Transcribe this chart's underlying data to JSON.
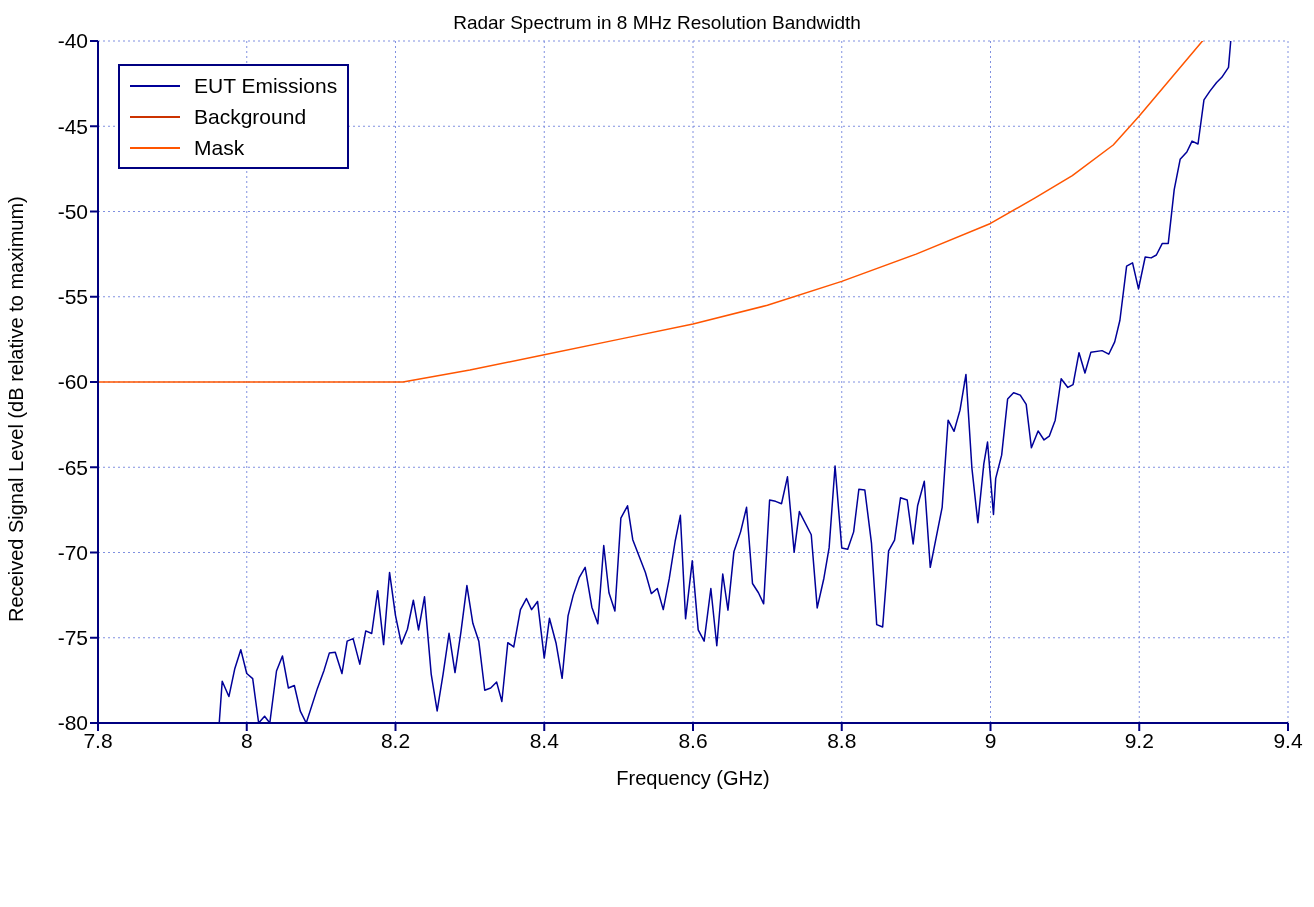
{
  "chart_data": {
    "type": "line",
    "title": "Radar Spectrum in 8 MHz Resolution Bandwidth",
    "xlabel": "Frequency (GHz)",
    "ylabel": "Received Signal Level (dB relative to maximum)",
    "xlim": [
      7.8,
      9.4
    ],
    "xticks": [
      7.8,
      8,
      8.2,
      8.4,
      8.6,
      8.8,
      9,
      9.2,
      9.4
    ],
    "ylim": [
      -80,
      -40
    ],
    "yticks": [
      -80,
      -75,
      -70,
      -65,
      -60,
      -55,
      -50,
      -45,
      -40
    ],
    "grid": true,
    "legend": "top left",
    "line_style": "solid",
    "marker": "none",
    "series": [
      {
        "name": "EUT Emissions",
        "color": "#000099",
        "x": [
          7.963,
          7.967,
          7.976,
          7.984,
          7.992,
          8.0,
          8.008,
          8.016,
          8.024,
          8.031,
          8.04,
          8.048,
          8.056,
          8.064,
          8.072,
          8.08,
          8.095,
          8.104,
          8.111,
          8.119,
          8.128,
          8.135,
          8.143,
          8.152,
          8.16,
          8.168,
          8.176,
          8.184,
          8.192,
          8.2,
          8.208,
          8.216,
          8.224,
          8.231,
          8.239,
          8.248,
          8.256,
          8.264,
          8.272,
          8.28,
          8.288,
          8.296,
          8.304,
          8.312,
          8.32,
          8.328,
          8.336,
          8.343,
          8.351,
          8.359,
          8.368,
          8.376,
          8.383,
          8.391,
          8.4,
          8.407,
          8.416,
          8.424,
          8.432,
          8.439,
          8.447,
          8.455,
          8.464,
          8.472,
          8.48,
          8.487,
          8.495,
          8.503,
          8.512,
          8.519,
          8.536,
          8.544,
          8.552,
          8.56,
          8.568,
          8.576,
          8.583,
          8.59,
          8.599,
          8.607,
          8.615,
          8.624,
          8.632,
          8.64,
          8.647,
          8.655,
          8.664,
          8.672,
          8.68,
          8.688,
          8.695,
          8.703,
          8.711,
          8.719,
          8.727,
          8.736,
          8.743,
          8.759,
          8.767,
          8.776,
          8.783,
          8.791,
          8.8,
          8.808,
          8.816,
          8.823,
          8.831,
          8.84,
          8.847,
          8.855,
          8.863,
          8.871,
          8.879,
          8.888,
          8.896,
          8.902,
          8.911,
          8.919,
          8.935,
          8.943,
          8.951,
          8.959,
          8.967,
          8.975,
          8.983,
          8.991,
          8.996,
          9.004,
          9.007,
          9.015,
          9.023,
          9.031,
          9.04,
          9.048,
          9.055,
          9.064,
          9.072,
          9.079,
          9.087,
          9.095,
          9.104,
          9.111,
          9.119,
          9.127,
          9.135,
          9.15,
          9.159,
          9.167,
          9.174,
          9.183,
          9.191,
          9.199,
          9.208,
          9.216,
          9.223,
          9.231,
          9.239,
          9.247,
          9.255,
          9.264,
          9.271,
          9.279,
          9.287,
          9.295,
          9.304,
          9.311,
          9.32,
          9.323
        ],
        "values": [
          -80,
          -77.55,
          -78.45,
          -76.8,
          -75.7,
          -77.1,
          -77.4,
          -80,
          -79.6,
          -80,
          -76.95,
          -76.07,
          -77.95,
          -77.8,
          -79.3,
          -80,
          -77.97,
          -76.9,
          -75.9,
          -75.85,
          -77.1,
          -75.2,
          -75.05,
          -76.55,
          -74.6,
          -74.75,
          -72.25,
          -75.4,
          -71.17,
          -73.7,
          -75.37,
          -74.5,
          -72.8,
          -74.54,
          -72.6,
          -77.13,
          -79.29,
          -77.13,
          -74.74,
          -77.04,
          -74.66,
          -71.94,
          -74.15,
          -75.2,
          -78.08,
          -77.95,
          -77.6,
          -78.74,
          -75.29,
          -75.54,
          -73.35,
          -72.7,
          -73.35,
          -72.87,
          -76.19,
          -73.86,
          -75.34,
          -77.38,
          -73.72,
          -72.5,
          -71.48,
          -70.87,
          -73.21,
          -74.18,
          -69.59,
          -72.36,
          -73.43,
          -67.99,
          -67.26,
          -69.25,
          -71.17,
          -72.41,
          -72.11,
          -73.35,
          -71.55,
          -69.34,
          -67.82,
          -73.89,
          -70.49,
          -74.54,
          -75.2,
          -72.11,
          -75.47,
          -71.26,
          -73.38,
          -69.95,
          -68.79,
          -67.35,
          -71.82,
          -72.36,
          -73.01,
          -66.92,
          -67.0,
          -67.14,
          -65.56,
          -69.98,
          -67.6,
          -68.96,
          -73.25,
          -71.51,
          -69.73,
          -64.93,
          -69.73,
          -69.81,
          -68.79,
          -66.29,
          -66.33,
          -69.47,
          -74.23,
          -74.37,
          -69.9,
          -69.27,
          -66.79,
          -66.92,
          -69.5,
          -67.26,
          -65.82,
          -70.87,
          -67.35,
          -62.24,
          -62.89,
          -61.65,
          -59.56,
          -65.05,
          -68.25,
          -64.8,
          -63.52,
          -67.77,
          -65.65,
          -64.29,
          -61.0,
          -60.63,
          -60.77,
          -61.31,
          -63.86,
          -62.87,
          -63.4,
          -63.18,
          -62.24,
          -59.81,
          -60.32,
          -60.15,
          -58.28,
          -59.47,
          -58.25,
          -58.16,
          -58.37,
          -57.65,
          -56.38,
          -53.2,
          -53.01,
          -54.54,
          -52.67,
          -52.72,
          -52.55,
          -51.87,
          -51.87,
          -48.72,
          -46.94,
          -46.51,
          -45.87,
          -46.04,
          -43.45,
          -42.94,
          -42.43,
          -42.13,
          -41.55,
          -40
        ]
      },
      {
        "name": "Background",
        "color": "#cc3300"
      },
      {
        "name": "Mask",
        "color": "#ff5500",
        "x": [
          7.8,
          8.21,
          8.3,
          8.4,
          8.5,
          8.6,
          8.7,
          8.8,
          8.9,
          9.0,
          9.06,
          9.11,
          9.165,
          9.2,
          9.285
        ],
        "values": [
          -60,
          -60,
          -59.3,
          -58.4,
          -57.5,
          -56.6,
          -55.5,
          -54.1,
          -52.5,
          -50.7,
          -49.2,
          -47.9,
          -46.1,
          -44.4,
          -40
        ]
      }
    ]
  }
}
